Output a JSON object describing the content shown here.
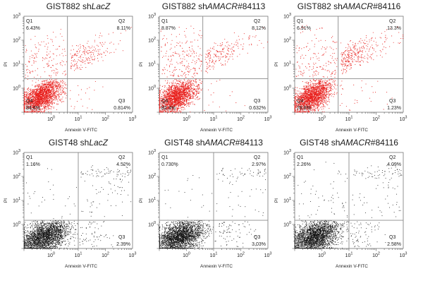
{
  "chart_data": [
    {
      "type": "scatter",
      "title_parts": [
        {
          "text": "GIST882 sh",
          "italic": false
        },
        {
          "text": "LacZ",
          "italic": true
        }
      ],
      "xlabel": "Annexin V-FITC",
      "ylabel": "PI",
      "x_scale": "log",
      "y_scale": "log",
      "xlim": [
        0.1,
        1000
      ],
      "ylim": [
        0.1,
        1000
      ],
      "x_ticks": [
        {
          "base": "10",
          "exp": "0"
        },
        {
          "base": "10",
          "exp": "1"
        },
        {
          "base": "10",
          "exp": "2"
        },
        {
          "base": "10",
          "exp": "3"
        }
      ],
      "y_ticks": [
        {
          "base": "10",
          "exp": "0"
        },
        {
          "base": "10",
          "exp": "1"
        },
        {
          "base": "10",
          "exp": "2"
        },
        {
          "base": "10",
          "exp": "3"
        }
      ],
      "gate": {
        "x": 4,
        "y": 2.5
      },
      "point_color": "#e8201d",
      "quadrants": [
        {
          "name": "Q1",
          "value": "6.43%",
          "position": "top-left"
        },
        {
          "name": "Q2",
          "value": "8.11%",
          "position": "top-right"
        },
        {
          "name": "Q3",
          "value": "0.814%",
          "position": "bottom-right"
        },
        {
          "name": "Q4",
          "value": "84.6%",
          "position": "bottom-left"
        }
      ]
    },
    {
      "type": "scatter",
      "title_parts": [
        {
          "text": "GIST882 sh",
          "italic": false
        },
        {
          "text": "AMACR",
          "italic": true
        },
        {
          "text": "#84113",
          "italic": false
        }
      ],
      "xlabel": "Annexin V-FITC",
      "ylabel": "PI",
      "x_scale": "log",
      "y_scale": "log",
      "xlim": [
        0.1,
        1000
      ],
      "ylim": [
        0.1,
        1000
      ],
      "x_ticks": [
        {
          "base": "10",
          "exp": "0"
        },
        {
          "base": "10",
          "exp": "1"
        },
        {
          "base": "10",
          "exp": "2"
        },
        {
          "base": "10",
          "exp": "3"
        }
      ],
      "y_ticks": [
        {
          "base": "10",
          "exp": "0"
        },
        {
          "base": "10",
          "exp": "1"
        },
        {
          "base": "10",
          "exp": "2"
        },
        {
          "base": "10",
          "exp": "3"
        }
      ],
      "gate": {
        "x": 4,
        "y": 2.5
      },
      "point_color": "#e8201d",
      "quadrants": [
        {
          "name": "Q1",
          "value": "8.87%",
          "position": "top-left"
        },
        {
          "name": "Q2",
          "value": "8.12%",
          "position": "top-right"
        },
        {
          "name": "Q3",
          "value": "0.632%",
          "position": "bottom-right"
        },
        {
          "name": "Q4",
          "value": "82.4%",
          "position": "bottom-left"
        }
      ]
    },
    {
      "type": "scatter",
      "title_parts": [
        {
          "text": "GIST882 sh",
          "italic": false
        },
        {
          "text": "AMACR",
          "italic": true
        },
        {
          "text": "#84116",
          "italic": false
        }
      ],
      "xlabel": "Annexin V-FITC",
      "ylabel": "PI",
      "x_scale": "log",
      "y_scale": "log",
      "xlim": [
        0.1,
        1000
      ],
      "ylim": [
        0.1,
        1000
      ],
      "x_ticks": [
        {
          "base": "10",
          "exp": "0"
        },
        {
          "base": "10",
          "exp": "1"
        },
        {
          "base": "10",
          "exp": "2"
        },
        {
          "base": "10",
          "exp": "3"
        }
      ],
      "y_ticks": [
        {
          "base": "10",
          "exp": "0"
        },
        {
          "base": "10",
          "exp": "1"
        },
        {
          "base": "10",
          "exp": "2"
        },
        {
          "base": "10",
          "exp": "3"
        }
      ],
      "gate": {
        "x": 4,
        "y": 2.5
      },
      "point_color": "#e8201d",
      "quadrants": [
        {
          "name": "Q1",
          "value": "6.91%",
          "position": "top-left"
        },
        {
          "name": "Q2",
          "value": "13.3%",
          "position": "top-right"
        },
        {
          "name": "Q3",
          "value": "1.23%",
          "position": "bottom-right"
        },
        {
          "name": "Q4",
          "value": "78.6%",
          "position": "bottom-left"
        }
      ]
    },
    {
      "type": "scatter",
      "title_parts": [
        {
          "text": "GIST48 sh",
          "italic": false
        },
        {
          "text": "LacZ",
          "italic": true
        }
      ],
      "xlabel": "Annexin V-FITC",
      "ylabel": "PI",
      "x_scale": "log",
      "y_scale": "log",
      "xlim": [
        0.1,
        1000
      ],
      "ylim": [
        0.1,
        1000
      ],
      "x_ticks": [
        {
          "base": "10",
          "exp": "0"
        },
        {
          "base": "10",
          "exp": "1"
        },
        {
          "base": "10",
          "exp": "2"
        },
        {
          "base": "10",
          "exp": "3"
        }
      ],
      "y_ticks": [
        {
          "base": "10",
          "exp": "0"
        },
        {
          "base": "10",
          "exp": "1"
        },
        {
          "base": "10",
          "exp": "2"
        },
        {
          "base": "10",
          "exp": "3"
        }
      ],
      "gate": {
        "x": 10,
        "y": 1.5
      },
      "point_color": "#111111",
      "quadrants": [
        {
          "name": "Q1",
          "value": "1.16%",
          "position": "top-left"
        },
        {
          "name": "Q2",
          "value": "4.52%",
          "position": "top-right"
        },
        {
          "name": "Q3",
          "value": "2.39%",
          "position": "bottom-right"
        },
        {
          "name": "Q4",
          "value": "91.9%",
          "position": "bottom-left"
        }
      ]
    },
    {
      "type": "scatter",
      "title_parts": [
        {
          "text": "GIST48 sh",
          "italic": false
        },
        {
          "text": "AMACR",
          "italic": true
        },
        {
          "text": "#84113",
          "italic": false
        }
      ],
      "xlabel": "Annexin V-FITC",
      "ylabel": "PI",
      "x_scale": "log",
      "y_scale": "log",
      "xlim": [
        0.1,
        1000
      ],
      "ylim": [
        0.1,
        1000
      ],
      "x_ticks": [
        {
          "base": "10",
          "exp": "0"
        },
        {
          "base": "10",
          "exp": "1"
        },
        {
          "base": "10",
          "exp": "2"
        },
        {
          "base": "10",
          "exp": "3"
        }
      ],
      "y_ticks": [
        {
          "base": "10",
          "exp": "0"
        },
        {
          "base": "10",
          "exp": "1"
        },
        {
          "base": "10",
          "exp": "2"
        },
        {
          "base": "10",
          "exp": "3"
        }
      ],
      "gate": {
        "x": 10,
        "y": 1.5
      },
      "point_color": "#111111",
      "quadrants": [
        {
          "name": "Q1",
          "value": "0.730%",
          "position": "top-left"
        },
        {
          "name": "Q2",
          "value": "2.97%",
          "position": "top-right"
        },
        {
          "name": "Q3",
          "value": "3.03%",
          "position": "bottom-right"
        },
        {
          "name": "Q4",
          "value": "93.3%",
          "position": "bottom-left"
        }
      ]
    },
    {
      "type": "scatter",
      "title_parts": [
        {
          "text": "GIST48 sh",
          "italic": false
        },
        {
          "text": "AMACR",
          "italic": true
        },
        {
          "text": "#84116",
          "italic": false
        }
      ],
      "xlabel": "Annexin V-FITC",
      "ylabel": "PI",
      "x_scale": "log",
      "y_scale": "log",
      "xlim": [
        0.1,
        1000
      ],
      "ylim": [
        0.1,
        1000
      ],
      "x_ticks": [
        {
          "base": "10",
          "exp": "0"
        },
        {
          "base": "10",
          "exp": "1"
        },
        {
          "base": "10",
          "exp": "2"
        },
        {
          "base": "10",
          "exp": "3"
        }
      ],
      "y_ticks": [
        {
          "base": "10",
          "exp": "0"
        },
        {
          "base": "10",
          "exp": "1"
        },
        {
          "base": "10",
          "exp": "2"
        },
        {
          "base": "10",
          "exp": "3"
        }
      ],
      "gate": {
        "x": 10,
        "y": 1.5
      },
      "point_color": "#111111",
      "quadrants": [
        {
          "name": "Q1",
          "value": "2.26%",
          "position": "top-left"
        },
        {
          "name": "Q2",
          "value": "4.09%",
          "position": "top-right"
        },
        {
          "name": "Q3",
          "value": "2.58%",
          "position": "bottom-right"
        },
        {
          "name": "Q4",
          "value": "91.1%",
          "position": "bottom-left"
        }
      ]
    }
  ]
}
